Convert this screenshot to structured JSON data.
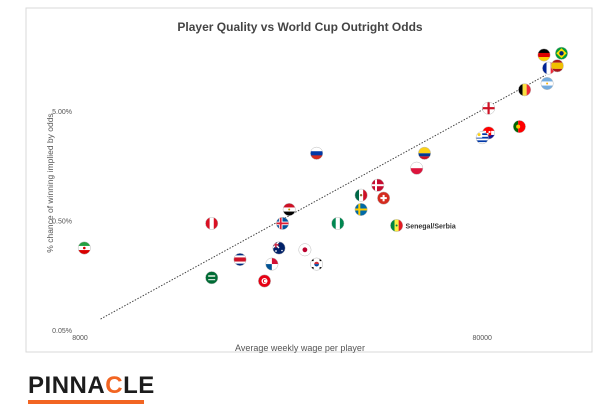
{
  "chart_data": {
    "type": "scatter",
    "title": "Player Quality vs World Cup Outright Odds",
    "xlabel": "Average weekly wage per player",
    "ylabel": "% chance of winning implied by odds",
    "x_scale": "log",
    "y_scale": "log",
    "xlim": [
      8000,
      120000
    ],
    "ylim": [
      0.05,
      18
    ],
    "x_ticks": [
      8000,
      80000
    ],
    "x_tick_labels": [
      "8000",
      "80000"
    ],
    "y_ticks": [
      0.05,
      0.5,
      5
    ],
    "y_tick_labels": [
      "0.05%",
      "0.50%",
      "5.00%"
    ],
    "trendline": {
      "style": "dotted",
      "x": [
        9000,
        115000
      ],
      "y": [
        0.063,
        10.6
      ]
    },
    "annotation": {
      "text": "Senegal/Serbia",
      "point": "Senegal/Serbia"
    },
    "points": [
      {
        "label": "Iran",
        "x": 8200,
        "y": 0.28,
        "flag": "iran"
      },
      {
        "label": "Peru",
        "x": 17000,
        "y": 0.47,
        "flag": "peru"
      },
      {
        "label": "Saudi Arabia",
        "x": 17000,
        "y": 0.15,
        "flag": "saudi"
      },
      {
        "label": "Costa Rica",
        "x": 20000,
        "y": 0.22,
        "flag": "costarica"
      },
      {
        "label": "Tunisia",
        "x": 23000,
        "y": 0.14,
        "flag": "tunisia"
      },
      {
        "label": "Panama",
        "x": 24000,
        "y": 0.2,
        "flag": "panama"
      },
      {
        "label": "Australia",
        "x": 25000,
        "y": 0.28,
        "flag": "australia"
      },
      {
        "label": "Iceland",
        "x": 25500,
        "y": 0.47,
        "flag": "iceland"
      },
      {
        "label": "Egypt",
        "x": 26500,
        "y": 0.63,
        "flag": "egypt"
      },
      {
        "label": "Japan",
        "x": 29000,
        "y": 0.27,
        "flag": "japan"
      },
      {
        "label": "South Korea",
        "x": 31000,
        "y": 0.2,
        "flag": "korea"
      },
      {
        "label": "Russia",
        "x": 31000,
        "y": 2.05,
        "flag": "russia"
      },
      {
        "label": "Nigeria",
        "x": 35000,
        "y": 0.47,
        "flag": "nigeria"
      },
      {
        "label": "Mexico",
        "x": 40000,
        "y": 0.85,
        "flag": "mexico"
      },
      {
        "label": "Sweden",
        "x": 40000,
        "y": 0.63,
        "flag": "sweden"
      },
      {
        "label": "Denmark",
        "x": 44000,
        "y": 1.05,
        "flag": "denmark"
      },
      {
        "label": "Switzerland",
        "x": 45500,
        "y": 0.8,
        "flag": "switzerland"
      },
      {
        "label": "Senegal/Serbia",
        "x": 49000,
        "y": 0.45,
        "flag": "senegal"
      },
      {
        "label": "Poland",
        "x": 55000,
        "y": 1.5,
        "flag": "poland"
      },
      {
        "label": "Colombia",
        "x": 57500,
        "y": 2.05,
        "flag": "colombia"
      },
      {
        "label": "England",
        "x": 83000,
        "y": 5.3,
        "flag": "england"
      },
      {
        "label": "Croatia",
        "x": 83000,
        "y": 3.15,
        "flag": "croatia"
      },
      {
        "label": "Uruguay",
        "x": 80000,
        "y": 2.85,
        "flag": "uruguay"
      },
      {
        "label": "Portugal",
        "x": 99000,
        "y": 3.6,
        "flag": "portugal"
      },
      {
        "label": "Belgium",
        "x": 102000,
        "y": 7.8,
        "flag": "belgium"
      },
      {
        "label": "Argentina",
        "x": 116000,
        "y": 8.9,
        "flag": "argentina"
      },
      {
        "label": "France",
        "x": 117000,
        "y": 12.3,
        "flag": "france"
      },
      {
        "label": "Germany",
        "x": 114000,
        "y": 16.2,
        "flag": "germany"
      },
      {
        "label": "Spain",
        "x": 123000,
        "y": 12.9,
        "flag": "spain"
      },
      {
        "label": "Brazil",
        "x": 126000,
        "y": 16.8,
        "flag": "brazil"
      }
    ]
  },
  "brand": {
    "logo_text": "PINNACLE",
    "accent": "#f26522"
  },
  "colors": {
    "frame": "#d9d9d9",
    "axis_text": "#555555",
    "trendline": "#444444"
  }
}
